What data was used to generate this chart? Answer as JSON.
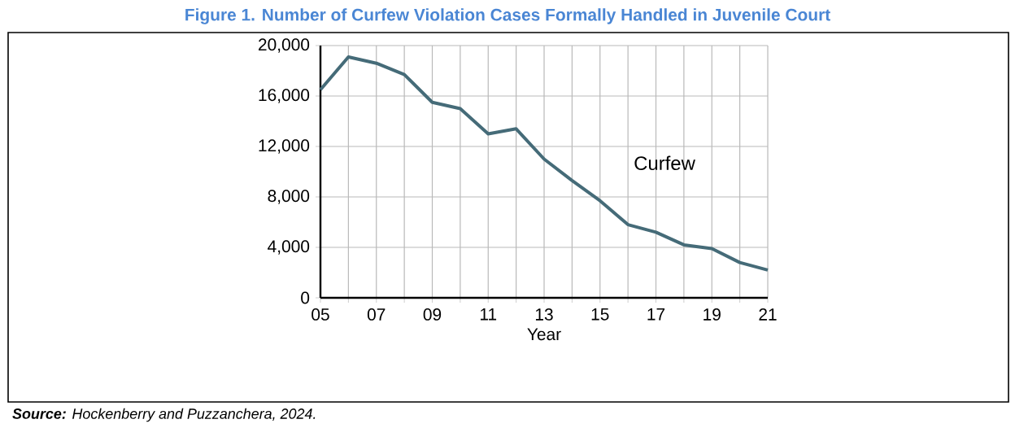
{
  "chart_data": {
    "type": "line",
    "title": "Figure 1. Number of Curfew Violation Cases Formally Handled in Juvenile Court",
    "xlabel": "Year",
    "x": [
      2005,
      2006,
      2007,
      2008,
      2009,
      2010,
      2011,
      2012,
      2013,
      2014,
      2015,
      2016,
      2017,
      2018,
      2019,
      2020,
      2021
    ],
    "series": [
      {
        "name": "Curfew",
        "color": "#456b78",
        "values": [
          16500,
          19100,
          18600,
          17700,
          15500,
          15000,
          13000,
          13400,
          11000,
          9300,
          7700,
          5800,
          5200,
          4200,
          3900,
          2800,
          2200
        ]
      }
    ],
    "xlim": [
      2005,
      2021
    ],
    "xticks": [
      {
        "value": 2005,
        "label": "05"
      },
      {
        "value": 2006,
        "label": null
      },
      {
        "value": 2007,
        "label": "07"
      },
      {
        "value": 2008,
        "label": null
      },
      {
        "value": 2009,
        "label": "09"
      },
      {
        "value": 2010,
        "label": null
      },
      {
        "value": 2011,
        "label": "11"
      },
      {
        "value": 2012,
        "label": null
      },
      {
        "value": 2013,
        "label": "13"
      },
      {
        "value": 2014,
        "label": null
      },
      {
        "value": 2015,
        "label": "15"
      },
      {
        "value": 2016,
        "label": null
      },
      {
        "value": 2017,
        "label": "17"
      },
      {
        "value": 2018,
        "label": null
      },
      {
        "value": 2019,
        "label": "19"
      },
      {
        "value": 2020,
        "label": null
      },
      {
        "value": 2021,
        "label": "21"
      }
    ],
    "ylim": [
      0,
      20000
    ],
    "yticks": [
      {
        "value": 0,
        "label": "0"
      },
      {
        "value": 4000,
        "label": "4,000"
      },
      {
        "value": 8000,
        "label": "8,000"
      },
      {
        "value": 12000,
        "label": "12,000"
      },
      {
        "value": 16000,
        "label": "16,000"
      },
      {
        "value": 20000,
        "label": "20,000"
      }
    ],
    "grid": true,
    "legend": false,
    "marker": "none",
    "line_style": "solid",
    "annotations": [
      "**Source:** Hockenberry and Puzzanchera, 2024."
    ]
  }
}
